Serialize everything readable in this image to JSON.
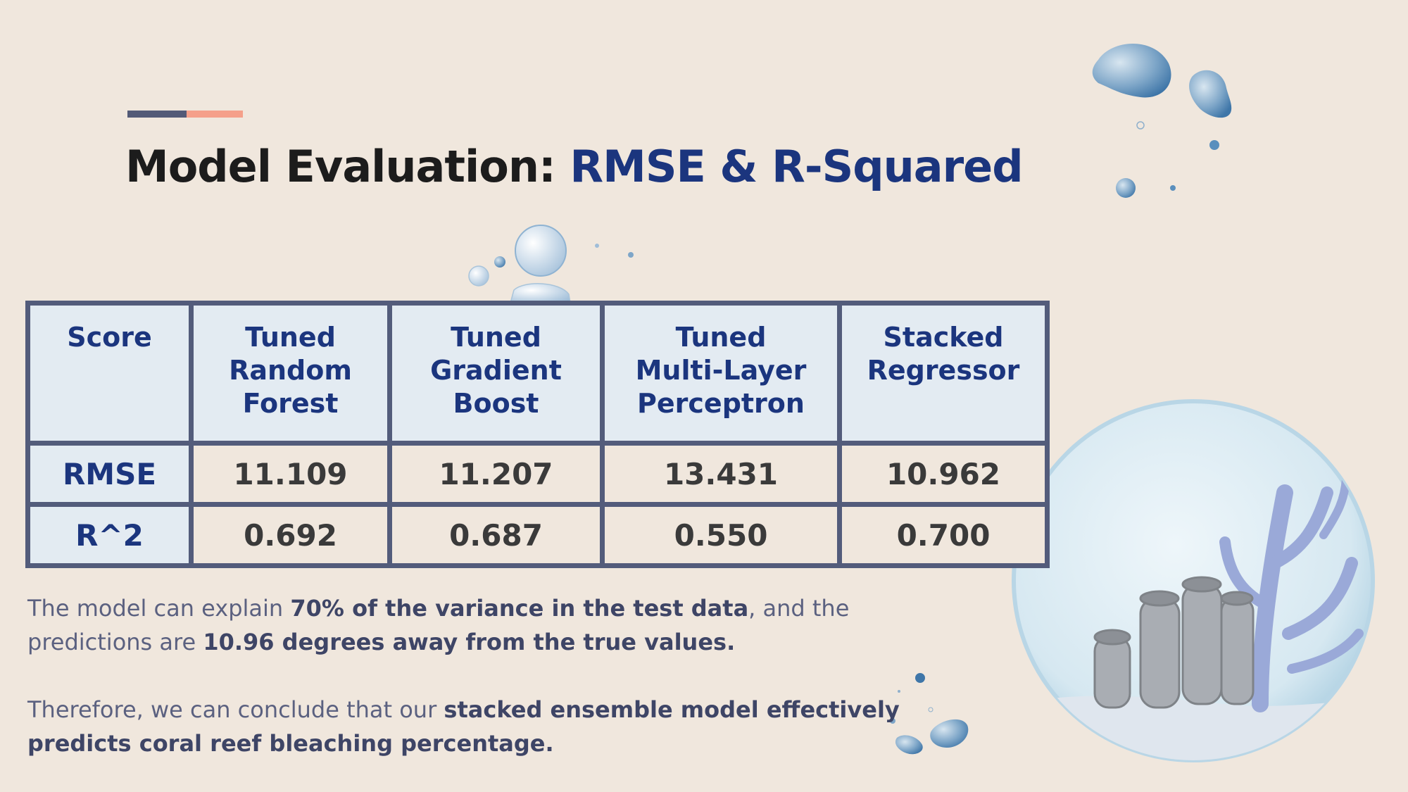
{
  "slide": {
    "title_prefix": "Model Evaluation: ",
    "title_highlight": "RMSE & R-Squared",
    "colors": {
      "background": "#f0e7dd",
      "title_dark": "#1c1c1c",
      "title_accent": "#1b357e",
      "table_border": "#535c7b",
      "header_fill": "#e3ebf2",
      "accent_bar_dark": "#535a77",
      "accent_bar_peach": "#f5a08a"
    }
  },
  "table": {
    "headers": [
      [
        "Score"
      ],
      [
        "Tuned",
        "Random",
        "Forest"
      ],
      [
        "Tuned",
        "Gradient",
        "Boost"
      ],
      [
        "Tuned",
        "Multi-Layer",
        "Perceptron"
      ],
      [
        "Stacked",
        "Regressor"
      ]
    ],
    "rows": [
      {
        "label": "RMSE",
        "values": [
          "11.109",
          "11.207",
          "13.431",
          "10.962"
        ]
      },
      {
        "label": "R^2",
        "values": [
          "0.692",
          "0.687",
          "0.550",
          "0.700"
        ]
      }
    ]
  },
  "paragraph1": {
    "t1": "The model can explain ",
    "b1": "70% of the variance in the test data",
    "t2": ", and the predictions are ",
    "b2": "10.96 degrees away from the true values."
  },
  "paragraph2": {
    "t1": "Therefore, we can conclude that our ",
    "b1": "stacked ensemble model effectively predicts coral reef bleaching percentage."
  },
  "decorations": {
    "icons": [
      "watercolor-bubble-icon",
      "coral-globe-illustration"
    ]
  }
}
